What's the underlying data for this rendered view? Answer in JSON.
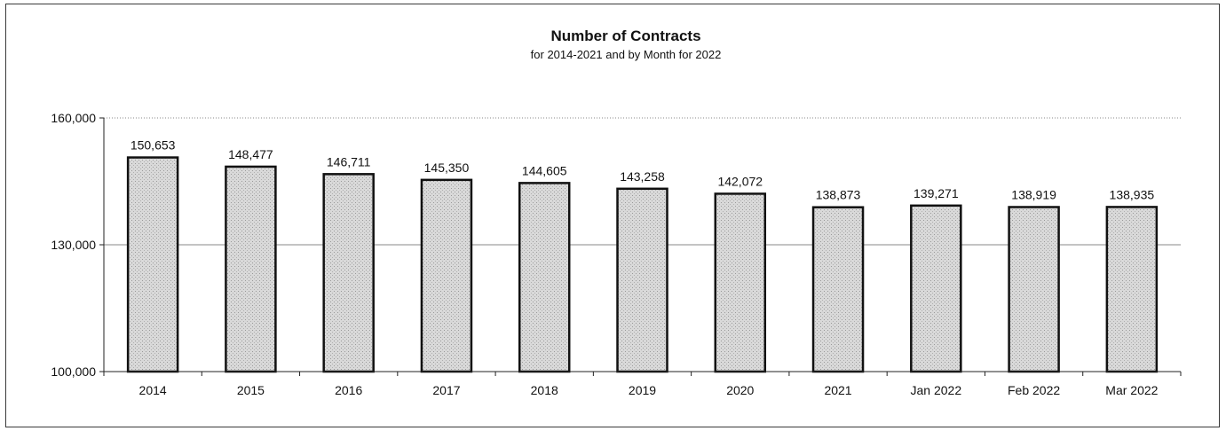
{
  "chart_data": {
    "type": "bar",
    "title": "Number of Contracts",
    "subtitle": "for 2014-2021  and by Month for 2022",
    "xlabel": "",
    "ylabel": "",
    "ylim": [
      100000,
      160000
    ],
    "yticks": [
      100000,
      130000,
      160000
    ],
    "ytick_labels": [
      "100,000",
      "130,000",
      "160,000"
    ],
    "grid": true,
    "legend": "none",
    "bar_fill": "#d9d9d9",
    "bar_edge": "#111111",
    "categories": [
      "2014",
      "2015",
      "2016",
      "2017",
      "2018",
      "2019",
      "2020",
      "2021",
      "Jan 2022",
      "Feb 2022",
      "Mar 2022"
    ],
    "values": [
      150653,
      148477,
      146711,
      145350,
      144605,
      143258,
      142072,
      138873,
      139271,
      138919,
      138935
    ],
    "value_labels": [
      "150,653",
      "148,477",
      "146,711",
      "145,350",
      "144,605",
      "143,258",
      "142,072",
      "138,873",
      "139,271",
      "138,919",
      "138,935"
    ]
  }
}
